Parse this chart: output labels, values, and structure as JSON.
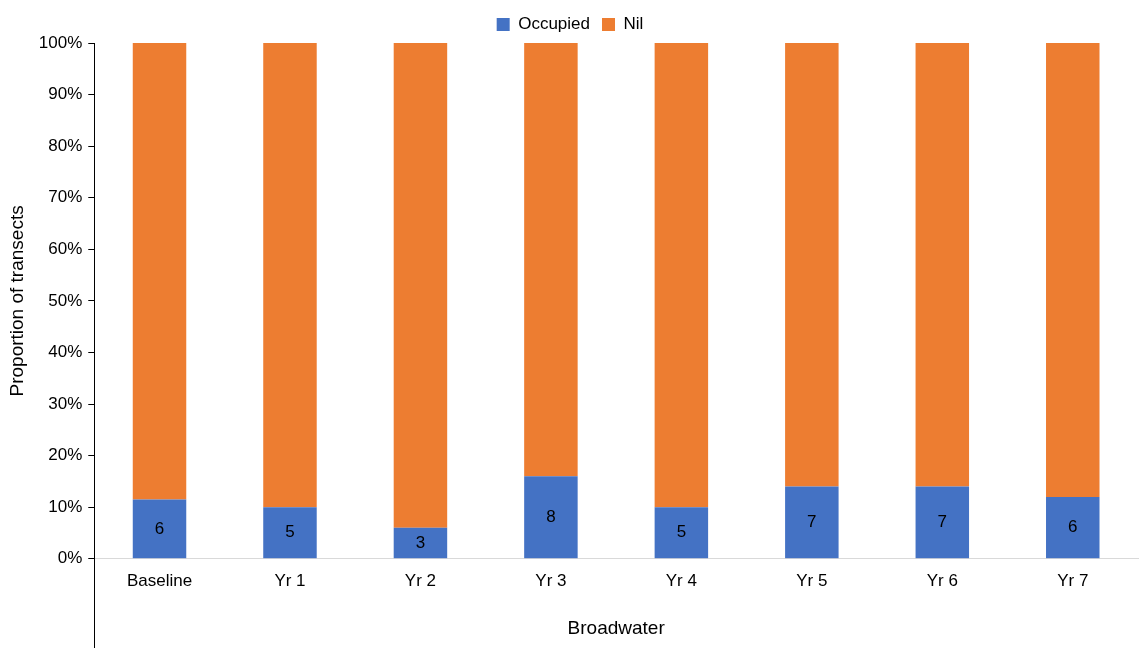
{
  "chart_data": {
    "type": "bar",
    "stacked": true,
    "xlabel": "Broadwater",
    "ylabel": "Proportion of transects",
    "categories": [
      "Baseline",
      "Yr 1",
      "Yr 2",
      "Yr 3",
      "Yr 4",
      "Yr 5",
      "Yr 6",
      "Yr 7"
    ],
    "series": [
      {
        "name": "Occupied",
        "color": "#4472c4",
        "values": [
          11.5,
          10,
          6,
          16,
          10,
          14,
          14,
          12
        ]
      },
      {
        "name": "Nil",
        "color": "#ed7d31",
        "values": [
          88.5,
          90,
          94,
          84,
          90,
          86,
          86,
          88
        ]
      }
    ],
    "ylim": [
      0,
      100
    ],
    "yticks": [
      {
        "value": 0,
        "label": "0%"
      },
      {
        "value": 10,
        "label": "10%"
      },
      {
        "value": 20,
        "label": "20%"
      },
      {
        "value": 30,
        "label": "30%"
      },
      {
        "value": 40,
        "label": "40%"
      },
      {
        "value": 50,
        "label": "50%"
      },
      {
        "value": 60,
        "label": "60%"
      },
      {
        "value": 70,
        "label": "70%"
      },
      {
        "value": 80,
        "label": "80%"
      },
      {
        "value": 90,
        "label": "90%"
      },
      {
        "value": 100,
        "label": "100%"
      }
    ],
    "annotations": [
      "6",
      "5",
      "3",
      "8",
      "5",
      "7",
      "7",
      "6"
    ],
    "legend": "top",
    "grid": false
  }
}
